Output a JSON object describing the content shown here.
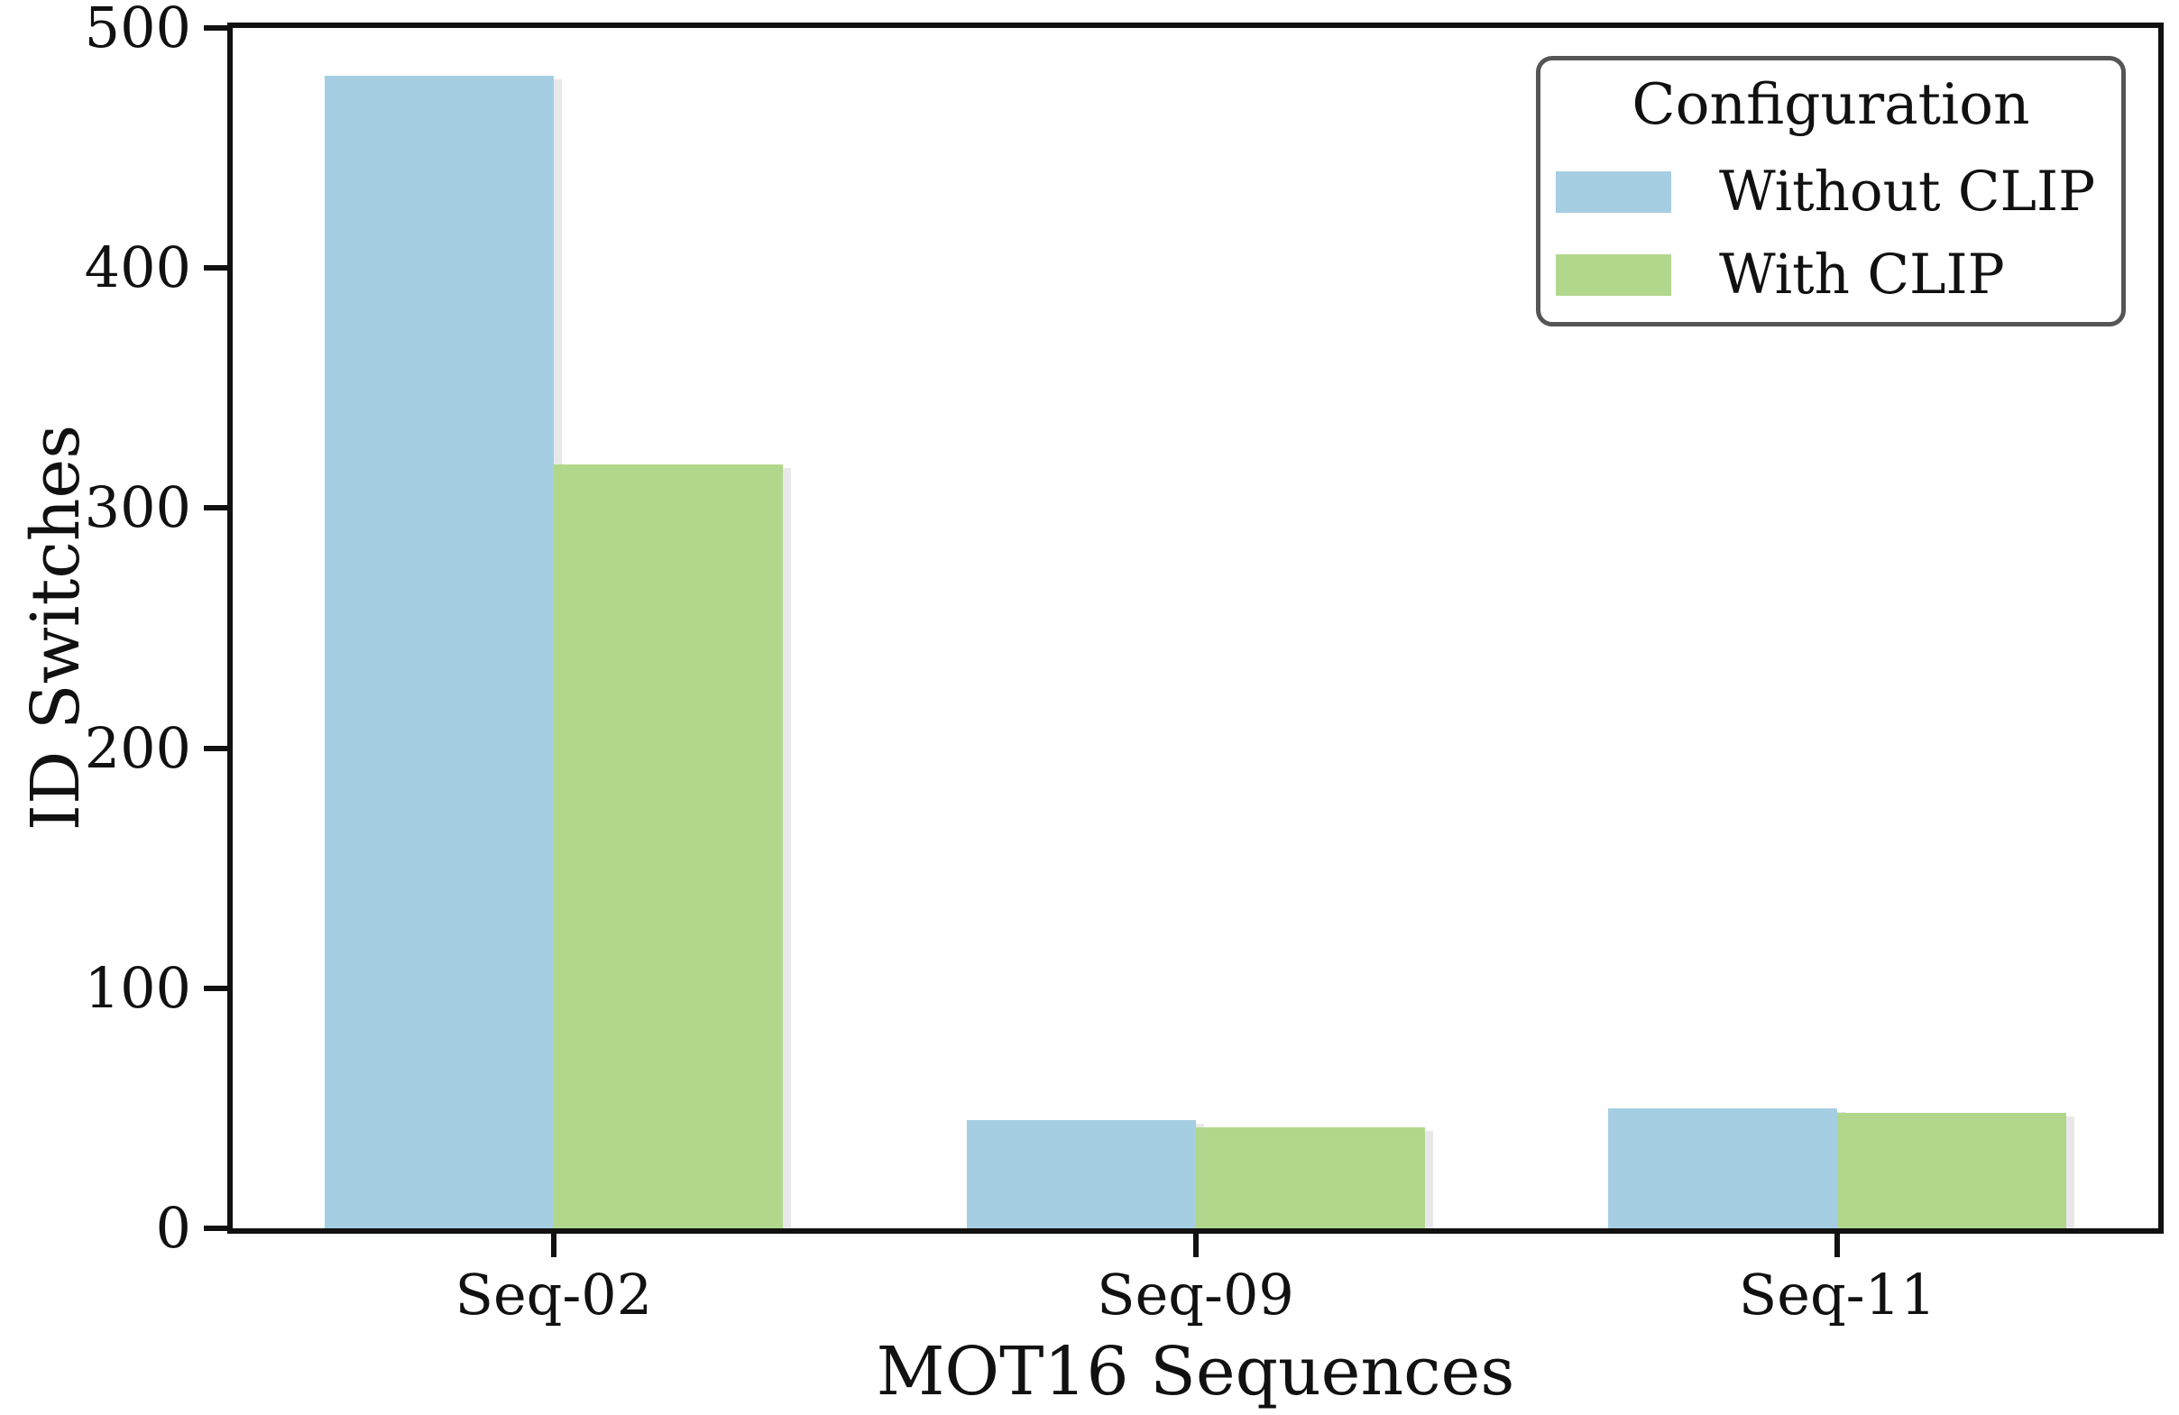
{
  "chart_data": {
    "type": "bar",
    "title": "",
    "xlabel": "MOT16 Sequences",
    "ylabel": "ID Switches",
    "categories": [
      "Seq-02",
      "Seq-09",
      "Seq-11"
    ],
    "series": [
      {
        "name": "Without CLIP",
        "color": "#a6cee3",
        "values": [
          480,
          45,
          50
        ]
      },
      {
        "name": "With CLIP",
        "color": "#b1d78d",
        "values": [
          318,
          42,
          48
        ]
      }
    ],
    "ylim": [
      0,
      500
    ],
    "yticks": [
      "0",
      "100",
      "200",
      "300",
      "400",
      "500"
    ],
    "legend": {
      "title": "Configuration",
      "position": "upper right"
    },
    "grid": false
  },
  "colors": {
    "axis": "#111111",
    "text": "#111111",
    "legend_border": "#555555",
    "bar_shadow": "#e8e8ea",
    "background": "#ffffff"
  }
}
